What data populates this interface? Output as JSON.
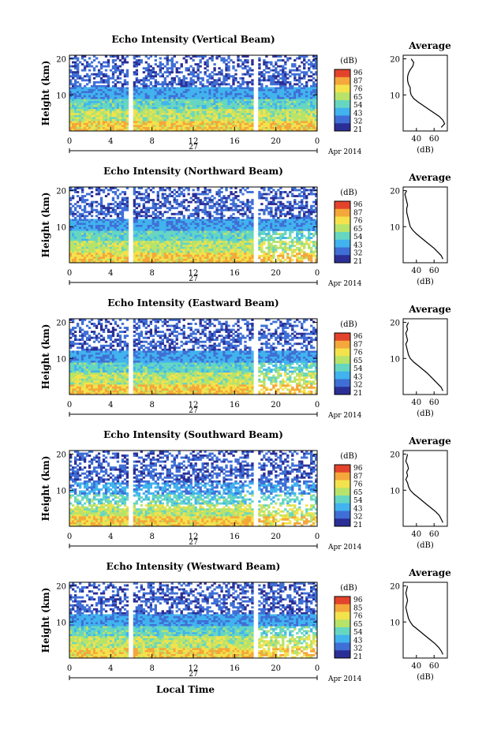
{
  "chart_data": [
    {
      "type": "heatmap",
      "title": "Echo Intensity (Vertical Beam)",
      "ylabel": "Height (km)",
      "y_ticks": [
        "20",
        "10"
      ],
      "x_ticks": [
        "0",
        "4",
        "8",
        "12",
        "16",
        "20",
        "0"
      ],
      "date_day": "27",
      "date_month": "Apr 2014",
      "colorbar_unit": "(dB)",
      "colorbar_ticks": [
        "96",
        "87",
        "76",
        "65",
        "54",
        "43",
        "32",
        "21"
      ],
      "profile": {
        "title": "Average",
        "xlabel": "(dB)",
        "x_ticks": [
          "40",
          "60"
        ],
        "xlim": [
          25,
          75
        ],
        "y_ticks": [
          "20",
          "10"
        ],
        "ylim": [
          0,
          20
        ],
        "points": [
          [
            68,
            1
          ],
          [
            72,
            2
          ],
          [
            70,
            3
          ],
          [
            66,
            4
          ],
          [
            60,
            5
          ],
          [
            54,
            6
          ],
          [
            48,
            7
          ],
          [
            42,
            8
          ],
          [
            37,
            9
          ],
          [
            34,
            10
          ],
          [
            33,
            11
          ],
          [
            33,
            12
          ],
          [
            31,
            13
          ],
          [
            30,
            14
          ],
          [
            30,
            15
          ],
          [
            31,
            16
          ],
          [
            33,
            17
          ],
          [
            36,
            18
          ],
          [
            37,
            19
          ],
          [
            34,
            20
          ]
        ]
      }
    },
    {
      "type": "heatmap",
      "title": "Echo Intensity (Northward Beam)",
      "ylabel": "Height (km)",
      "y_ticks": [
        "20",
        "10"
      ],
      "x_ticks": [
        "0",
        "4",
        "8",
        "12",
        "16",
        "20",
        "0"
      ],
      "date_day": "27",
      "date_month": "Apr 2014",
      "colorbar_unit": "(dB)",
      "colorbar_ticks": [
        "96",
        "87",
        "76",
        "65",
        "54",
        "43",
        "32",
        "21"
      ],
      "profile": {
        "title": "Average",
        "xlabel": "(dB)",
        "x_ticks": [
          "40",
          "60"
        ],
        "xlim": [
          25,
          75
        ],
        "y_ticks": [
          "20",
          "10"
        ],
        "ylim": [
          0,
          20
        ],
        "points": [
          [
            70,
            1
          ],
          [
            68,
            2
          ],
          [
            64,
            3
          ],
          [
            60,
            4
          ],
          [
            55,
            5
          ],
          [
            50,
            6
          ],
          [
            45,
            7
          ],
          [
            40,
            8
          ],
          [
            36,
            9
          ],
          [
            33,
            10
          ],
          [
            32,
            11
          ],
          [
            31,
            12
          ],
          [
            30,
            13
          ],
          [
            29,
            14
          ],
          [
            29,
            15
          ],
          [
            30,
            16
          ],
          [
            29,
            17
          ],
          [
            28,
            18
          ],
          [
            27,
            19
          ],
          [
            29,
            20
          ]
        ]
      }
    },
    {
      "type": "heatmap",
      "title": "Echo Intensity (Eastward Beam)",
      "ylabel": "Height (km)",
      "y_ticks": [
        "20",
        "10"
      ],
      "x_ticks": [
        "0",
        "4",
        "8",
        "12",
        "16",
        "20",
        "0"
      ],
      "date_day": "27",
      "date_month": "Apr 2014",
      "colorbar_unit": "(dB)",
      "colorbar_ticks": [
        "96",
        "87",
        "76",
        "65",
        "54",
        "43",
        "32",
        "21"
      ],
      "profile": {
        "title": "Average",
        "xlabel": "(dB)",
        "x_ticks": [
          "40",
          "60"
        ],
        "xlim": [
          25,
          75
        ],
        "y_ticks": [
          "20",
          "10"
        ],
        "ylim": [
          0,
          20
        ],
        "points": [
          [
            70,
            1
          ],
          [
            68,
            2
          ],
          [
            64,
            3
          ],
          [
            60,
            4
          ],
          [
            56,
            5
          ],
          [
            52,
            6
          ],
          [
            47,
            7
          ],
          [
            42,
            8
          ],
          [
            37,
            9
          ],
          [
            33,
            10
          ],
          [
            31,
            11
          ],
          [
            30,
            12
          ],
          [
            29,
            13
          ],
          [
            28,
            14
          ],
          [
            30,
            15
          ],
          [
            29,
            16
          ],
          [
            28,
            17
          ],
          [
            30,
            18
          ],
          [
            29,
            19
          ],
          [
            31,
            20
          ]
        ]
      }
    },
    {
      "type": "heatmap",
      "title": "Echo Intensity (Southward Beam)",
      "ylabel": "Height (km)",
      "y_ticks": [
        "20",
        "10"
      ],
      "x_ticks": [
        "0",
        "4",
        "8",
        "12",
        "16",
        "20",
        "0"
      ],
      "date_day": "27",
      "date_month": "Apr 2014",
      "colorbar_unit": "(dB)",
      "colorbar_ticks": [
        "96",
        "87",
        "76",
        "65",
        "54",
        "43",
        "32",
        "21"
      ],
      "profile": {
        "title": "Average",
        "xlabel": "(dB)",
        "x_ticks": [
          "40",
          "60"
        ],
        "xlim": [
          25,
          75
        ],
        "y_ticks": [
          "20",
          "10"
        ],
        "ylim": [
          0,
          20
        ],
        "points": [
          [
            70,
            1
          ],
          [
            68,
            2
          ],
          [
            66,
            3
          ],
          [
            62,
            4
          ],
          [
            57,
            5
          ],
          [
            52,
            6
          ],
          [
            47,
            7
          ],
          [
            42,
            8
          ],
          [
            37,
            9
          ],
          [
            33,
            10
          ],
          [
            31,
            11
          ],
          [
            30,
            12
          ],
          [
            28,
            13
          ],
          [
            30,
            14
          ],
          [
            29,
            15
          ],
          [
            31,
            16
          ],
          [
            30,
            17
          ],
          [
            28,
            18
          ],
          [
            29,
            19
          ],
          [
            30,
            20
          ]
        ]
      }
    },
    {
      "type": "heatmap",
      "title": "Echo Intensity (Westward Beam)",
      "ylabel": "Height (km)",
      "y_ticks": [
        "20",
        "10"
      ],
      "x_ticks": [
        "0",
        "4",
        "8",
        "12",
        "16",
        "20",
        "0"
      ],
      "date_day": "27",
      "date_month": "Apr 2014",
      "colorbar_unit": "(dB)",
      "colorbar_ticks": [
        "96",
        "85",
        "76",
        "65",
        "54",
        "43",
        "32",
        "21"
      ],
      "profile": {
        "title": "Average",
        "xlabel": "(dB)",
        "x_ticks": [
          "40",
          "60"
        ],
        "xlim": [
          25,
          75
        ],
        "y_ticks": [
          "20",
          "10"
        ],
        "ylim": [
          0,
          20
        ],
        "points": [
          [
            70,
            1
          ],
          [
            68,
            2
          ],
          [
            65,
            3
          ],
          [
            61,
            4
          ],
          [
            56,
            5
          ],
          [
            51,
            6
          ],
          [
            46,
            7
          ],
          [
            41,
            8
          ],
          [
            36,
            9
          ],
          [
            33,
            10
          ],
          [
            31,
            11
          ],
          [
            30,
            12
          ],
          [
            29,
            13
          ],
          [
            28,
            14
          ],
          [
            29,
            15
          ],
          [
            30,
            16
          ],
          [
            29,
            17
          ],
          [
            28,
            18
          ],
          [
            29,
            19
          ],
          [
            30,
            20
          ]
        ]
      }
    }
  ],
  "xlabel": "Local Time",
  "colors": {
    "scale": [
      "#2b2f95",
      "#3f6fd6",
      "#41b3ee",
      "#67d6c1",
      "#b7e36b",
      "#f4e24d",
      "#f4a73a",
      "#e3432b"
    ]
  }
}
